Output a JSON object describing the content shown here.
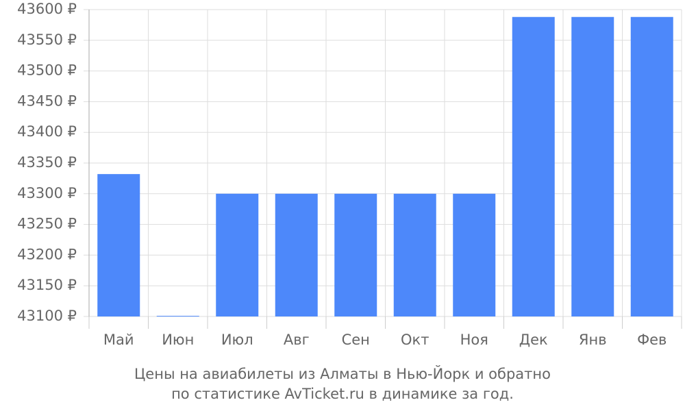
{
  "chart_data": {
    "type": "bar",
    "caption": [
      "Цены на авиабилеты из Алматы в Нью-Йорк и обратно",
      "по статистике AvTicket.ru в динамике за год."
    ],
    "categories": [
      "Май",
      "Июн",
      "Июл",
      "Авг",
      "Сен",
      "Окт",
      "Ноя",
      "Дек",
      "Янв",
      "Фев"
    ],
    "values": [
      43332,
      43101,
      43300,
      43300,
      43300,
      43300,
      43300,
      43588,
      43588,
      43588
    ],
    "color": "#4d88fa",
    "ylim": [
      43100,
      43600
    ],
    "yticks": [
      {
        "value": 43100,
        "label": "43100 ₽"
      },
      {
        "value": 43150,
        "label": "43150 ₽"
      },
      {
        "value": 43200,
        "label": "43200 ₽"
      },
      {
        "value": 43250,
        "label": "43250 ₽"
      },
      {
        "value": 43300,
        "label": "43300 ₽"
      },
      {
        "value": 43350,
        "label": "43350 ₽"
      },
      {
        "value": 43400,
        "label": "43400 ₽"
      },
      {
        "value": 43450,
        "label": "43450 ₽"
      },
      {
        "value": 43500,
        "label": "43500 ₽"
      },
      {
        "value": 43550,
        "label": "43550 ₽"
      },
      {
        "value": 43600,
        "label": "43600 ₽"
      }
    ],
    "grid": true
  }
}
